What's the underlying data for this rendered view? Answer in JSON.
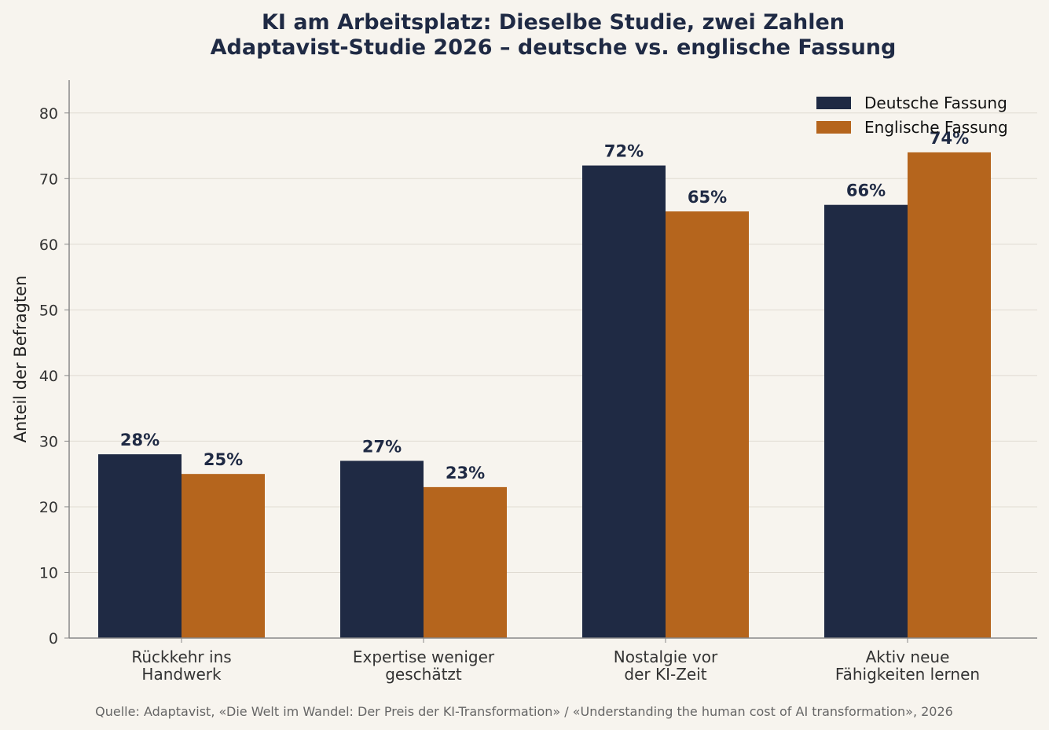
{
  "chart_data": {
    "type": "bar",
    "title": "KI am Arbeitsplatz: Dieselbe Studie, zwei Zahlen",
    "subtitle": "Adaptavist-Studie 2026 – deutsche vs. englische Fassung",
    "ylabel": "Anteil der Befragten",
    "xlabel": "",
    "ylim": [
      0,
      85
    ],
    "yticks": [
      0,
      10,
      20,
      30,
      40,
      50,
      60,
      70,
      80
    ],
    "grid": true,
    "legend_position": "top-right",
    "categories": [
      [
        "Rückkehr ins",
        "Handwerk"
      ],
      [
        "Expertise weniger",
        "geschätzt"
      ],
      [
        "Nostalgie vor",
        "der KI-Zeit"
      ],
      [
        "Aktiv neue",
        "Fähigkeiten lernen"
      ]
    ],
    "series": [
      {
        "name": "Deutsche Fassung",
        "color": "#1f2a44",
        "values": [
          28,
          27,
          72,
          66
        ],
        "labels": [
          "28%",
          "27%",
          "72%",
          "66%"
        ]
      },
      {
        "name": "Englische Fassung",
        "color": "#b5651d",
        "values": [
          25,
          23,
          65,
          74
        ],
        "labels": [
          "25%",
          "23%",
          "65%",
          "74%"
        ]
      }
    ],
    "source": "Quelle: Adaptavist, «Die Welt im Wandel: Der Preis der KI-Transformation» / «Understanding the human cost of AI transformation», 2026"
  }
}
